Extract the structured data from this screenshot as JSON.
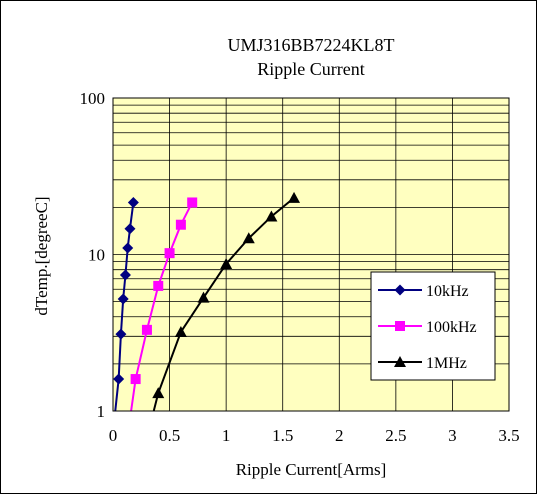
{
  "chart_data": {
    "type": "line",
    "title": "UMJ316BB7224KL8T",
    "subtitle": "Ripple Current",
    "xlabel": "Ripple Current[Arms]",
    "ylabel": "dTemp.[degreeC]",
    "xlim": [
      0,
      3.5
    ],
    "ylim": [
      1,
      100
    ],
    "yscale": "log",
    "grid": true,
    "legend_position": "lower-right",
    "plot_background": "#ffffc0",
    "x_ticks": [
      "0",
      "0.5",
      "1",
      "1.5",
      "2",
      "2.5",
      "3",
      "3.5"
    ],
    "y_ticks": [
      "1",
      "10",
      "100"
    ],
    "series": [
      {
        "name": "10kHz",
        "color": "#000080",
        "marker": "diamond",
        "x": [
          0.02,
          0.05,
          0.07,
          0.09,
          0.11,
          0.13,
          0.15,
          0.18
        ],
        "y": [
          1.0,
          1.6,
          3.1,
          5.2,
          7.4,
          11.0,
          14.6,
          21.5
        ]
      },
      {
        "name": "100kHz",
        "color": "#ff00ff",
        "marker": "square",
        "x": [
          0.16,
          0.2,
          0.3,
          0.4,
          0.5,
          0.6,
          0.7
        ],
        "y": [
          1.0,
          1.6,
          3.3,
          6.3,
          10.2,
          15.5,
          21.5
        ]
      },
      {
        "name": "1MHz",
        "color": "#000000",
        "marker": "triangle",
        "x": [
          0.36,
          0.4,
          0.6,
          0.8,
          1.0,
          1.2,
          1.4,
          1.6
        ],
        "y": [
          1.0,
          1.3,
          3.2,
          5.3,
          8.7,
          12.7,
          17.5,
          23.0
        ]
      }
    ]
  }
}
